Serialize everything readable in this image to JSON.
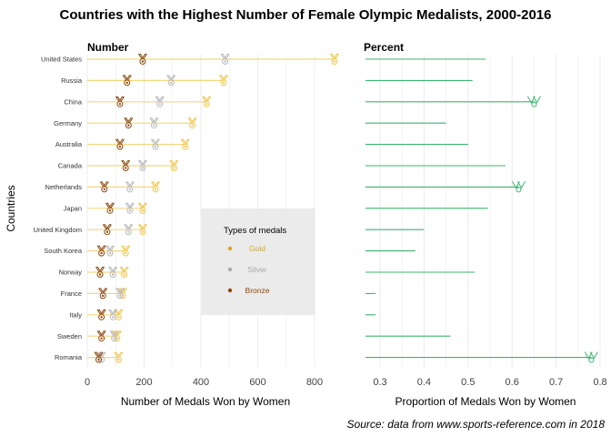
{
  "title": "Countries with the Highest Number of Female Olympic Medalists, 2000-2016",
  "caption": "Source: data from www.sports-reference.com in 2018",
  "y_axis_label": "Countries",
  "colors": {
    "gold": "#f0c64b",
    "gold_line": "#f5d77e",
    "silver": "#b8b8b8",
    "bronze": "#8c4a0e",
    "percent": "#3cb46e",
    "grid": "#ebebeb",
    "legend_bg": "#ebebeb"
  },
  "icon": "medal-icon",
  "legend": {
    "title": "Types of medals",
    "items": [
      {
        "label": "Gold",
        "color": "#d4a72c"
      },
      {
        "label": "Silver",
        "color": "#aaaaaa"
      },
      {
        "label": "Bronze",
        "color": "#8c4a0e"
      }
    ]
  },
  "chart_data": [
    {
      "type": "line",
      "title": "Number",
      "xlabel": "Number of Medals Won by Women",
      "ylabel": "Countries",
      "xlim": [
        0,
        880
      ],
      "xticks": [
        "0",
        "200",
        "400",
        "600",
        "800"
      ],
      "categories": [
        "United States",
        "Russia",
        "China",
        "Germany",
        "Australia",
        "Canada",
        "Netherlands",
        "Japan",
        "United Kingdom",
        "South Korea",
        "Norway",
        "France",
        "Italy",
        "Sweden",
        "Romania"
      ],
      "series": [
        {
          "name": "Gold",
          "values": [
            870,
            480,
            420,
            370,
            345,
            305,
            240,
            195,
            195,
            135,
            130,
            125,
            110,
            105,
            110
          ]
        },
        {
          "name": "Silver",
          "values": [
            485,
            295,
            255,
            235,
            240,
            195,
            150,
            150,
            145,
            80,
            90,
            115,
            90,
            95,
            50
          ]
        },
        {
          "name": "Bronze",
          "values": [
            195,
            140,
            115,
            145,
            115,
            135,
            60,
            80,
            70,
            50,
            45,
            55,
            50,
            50,
            40
          ]
        }
      ]
    },
    {
      "type": "line",
      "title": "Percent",
      "xlabel": "Proportion of Medals Won by Women",
      "xlim": [
        0.3,
        0.8
      ],
      "xticks": [
        "0.3",
        "0.4",
        "0.5",
        "0.6",
        "0.7",
        "0.8"
      ],
      "categories": [
        "United States",
        "Russia",
        "China",
        "Germany",
        "Australia",
        "Canada",
        "Netherlands",
        "Japan",
        "United Kingdom",
        "South Korea",
        "Norway",
        "France",
        "Italy",
        "Sweden",
        "Romania"
      ],
      "values": [
        0.54,
        0.51,
        0.65,
        0.45,
        0.5,
        0.585,
        0.615,
        0.545,
        0.4,
        0.38,
        0.515,
        0.29,
        0.29,
        0.46,
        0.78
      ]
    }
  ]
}
